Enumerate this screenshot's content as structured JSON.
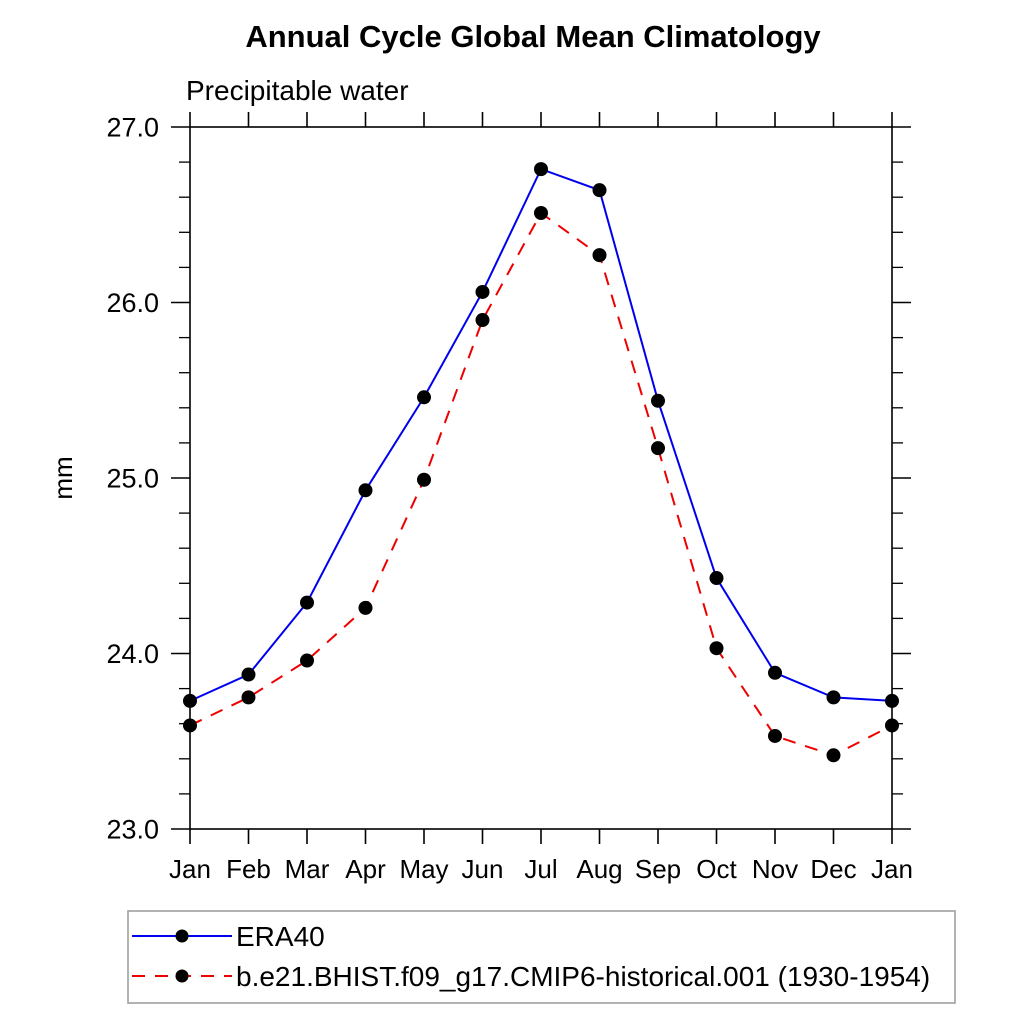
{
  "chart": {
    "title": "Annual Cycle Global Mean Climatology",
    "subtitle": "Precipitable water",
    "ylabel": "mm"
  },
  "chart_data": {
    "type": "line",
    "title": "Annual Cycle Global Mean Climatology",
    "subtitle": "Precipitable water",
    "xlabel": "",
    "ylabel": "mm",
    "categories": [
      "Jan",
      "Feb",
      "Mar",
      "Apr",
      "May",
      "Jun",
      "Jul",
      "Aug",
      "Sep",
      "Oct",
      "Nov",
      "Dec",
      "Jan"
    ],
    "series": [
      {
        "name": "ERA40",
        "color": "#0000ee",
        "line_style": "solid",
        "marker": "filled-circle",
        "marker_color": "#000000",
        "values": [
          23.73,
          23.88,
          24.29,
          24.93,
          25.46,
          26.06,
          26.76,
          26.64,
          25.44,
          24.43,
          23.89,
          23.75,
          23.73
        ]
      },
      {
        "name": "b.e21.BHIST.f09_g17.CMIP6-historical.001 (1930-1954)",
        "color": "#ee0000",
        "line_style": "dashed",
        "marker": "filled-circle",
        "marker_color": "#000000",
        "values": [
          23.59,
          23.75,
          23.96,
          24.26,
          24.99,
          25.9,
          26.51,
          26.27,
          25.17,
          24.03,
          23.53,
          23.42,
          23.59
        ]
      }
    ],
    "ylim": [
      23.0,
      27.0
    ],
    "ytick_step": 1.0,
    "ytick_minor_step": 0.2,
    "ytick_labels": [
      "23.0",
      "24.0",
      "25.0",
      "26.0",
      "27.0"
    ],
    "grid": false,
    "legend_position": "bottom-left-box",
    "axis_color": "#000000"
  }
}
